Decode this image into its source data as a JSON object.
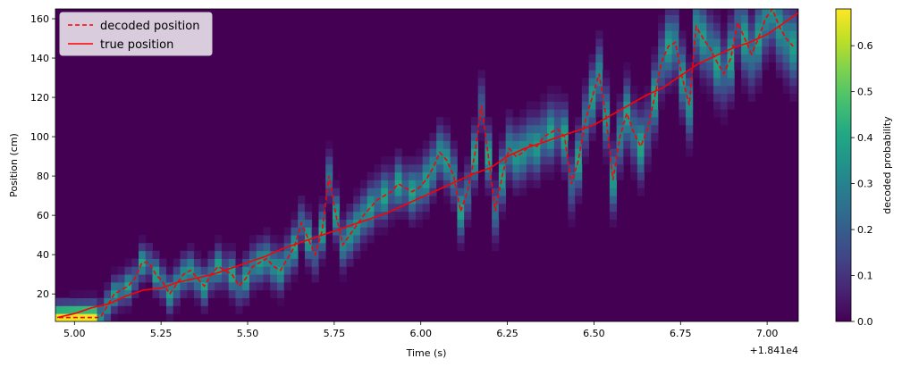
{
  "chart_data": {
    "type": "heatmap",
    "title": "",
    "xlabel": "Time (s)",
    "ylabel": "Position (cm)",
    "x_offset_label": "+1.841e4",
    "xlim": [
      4.945,
      7.09
    ],
    "ylim": [
      6,
      165
    ],
    "xticks": [
      5.0,
      5.25,
      5.5,
      5.75,
      6.0,
      6.25,
      6.5,
      6.75,
      7.0
    ],
    "xtick_labels": [
      "5.00",
      "5.25",
      "5.50",
      "5.75",
      "6.00",
      "6.25",
      "6.50",
      "6.75",
      "7.00"
    ],
    "yticks": [
      20,
      40,
      60,
      80,
      100,
      120,
      140,
      160
    ],
    "ytick_labels": [
      "20",
      "40",
      "60",
      "80",
      "100",
      "120",
      "140",
      "160"
    ],
    "colorbar": {
      "label": "decoded probability",
      "range": [
        0,
        0.68
      ],
      "ticks": [
        0.0,
        0.1,
        0.2,
        0.3,
        0.4,
        0.5,
        0.6
      ],
      "tick_labels": [
        "0.0",
        "0.1",
        "0.2",
        "0.3",
        "0.4",
        "0.5",
        "0.6"
      ]
    },
    "legend": {
      "position": "top-left",
      "entries": [
        {
          "label": "decoded position",
          "style": "dashed",
          "color": "#ff0000"
        },
        {
          "label": "true position",
          "style": "solid",
          "color": "#ff0000"
        }
      ]
    },
    "bin_width_s": 0.02,
    "decoded_position": {
      "x": [
        4.955,
        4.975,
        4.995,
        5.015,
        5.035,
        5.055,
        5.075,
        5.095,
        5.115,
        5.135,
        5.155,
        5.175,
        5.195,
        5.215,
        5.235,
        5.255,
        5.275,
        5.295,
        5.315,
        5.335,
        5.355,
        5.375,
        5.395,
        5.415,
        5.435,
        5.455,
        5.475,
        5.495,
        5.515,
        5.535,
        5.555,
        5.575,
        5.595,
        5.615,
        5.635,
        5.655,
        5.675,
        5.695,
        5.715,
        5.735,
        5.755,
        5.775,
        5.795,
        5.815,
        5.835,
        5.855,
        5.875,
        5.895,
        5.915,
        5.935,
        5.955,
        5.975,
        5.995,
        6.015,
        6.035,
        6.055,
        6.075,
        6.095,
        6.115,
        6.135,
        6.155,
        6.175,
        6.195,
        6.215,
        6.235,
        6.255,
        6.275,
        6.295,
        6.315,
        6.335,
        6.355,
        6.375,
        6.395,
        6.415,
        6.435,
        6.455,
        6.475,
        6.495,
        6.515,
        6.535,
        6.555,
        6.575,
        6.595,
        6.615,
        6.635,
        6.655,
        6.675,
        6.695,
        6.715,
        6.735,
        6.755,
        6.775,
        6.795,
        6.815,
        6.835,
        6.855,
        6.875,
        6.895,
        6.915,
        6.935,
        6.955,
        6.975,
        6.995,
        7.015,
        7.035,
        7.055,
        7.075
      ],
      "y": [
        8,
        8,
        8,
        8,
        8,
        8,
        8,
        14,
        20,
        22,
        24,
        28,
        36,
        36,
        30,
        26,
        20,
        25,
        30,
        32,
        28,
        24,
        30,
        34,
        32,
        30,
        24,
        28,
        34,
        36,
        38,
        34,
        32,
        38,
        44,
        56,
        48,
        40,
        52,
        80,
        60,
        45,
        50,
        55,
        60,
        64,
        68,
        70,
        72,
        76,
        74,
        72,
        74,
        78,
        84,
        92,
        88,
        80,
        62,
        72,
        90,
        116,
        90,
        62,
        80,
        94,
        90,
        92,
        96,
        95,
        100,
        102,
        104,
        100,
        76,
        88,
        108,
        120,
        132,
        110,
        78,
        100,
        112,
        102,
        95,
        104,
        120,
        138,
        146,
        148,
        130,
        116,
        156,
        150,
        145,
        138,
        132,
        140,
        158,
        150,
        142,
        150,
        160,
        165,
        156,
        150,
        146
      ]
    },
    "true_position": {
      "x": [
        4.95,
        5.0,
        5.05,
        5.1,
        5.15,
        5.2,
        5.25,
        5.3,
        5.35,
        5.4,
        5.45,
        5.5,
        5.55,
        5.6,
        5.65,
        5.7,
        5.75,
        5.8,
        5.85,
        5.9,
        5.95,
        6.0,
        6.05,
        6.1,
        6.15,
        6.2,
        6.25,
        6.3,
        6.35,
        6.4,
        6.45,
        6.5,
        6.55,
        6.6,
        6.65,
        6.7,
        6.75,
        6.8,
        6.85,
        6.9,
        6.95,
        7.0,
        7.05,
        7.09
      ],
      "y": [
        8,
        10,
        13,
        15,
        19,
        22,
        23,
        26,
        28,
        30,
        33,
        36,
        39,
        43,
        46,
        49,
        52,
        55,
        58,
        61,
        65,
        69,
        73,
        77,
        81,
        84,
        90,
        94,
        97,
        100,
        103,
        106,
        111,
        116,
        121,
        125,
        131,
        137,
        141,
        145,
        148,
        152,
        158,
        163
      ]
    }
  }
}
